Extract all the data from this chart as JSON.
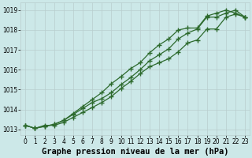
{
  "xlabel": "Graphe pression niveau de la mer (hPa)",
  "x": [
    0,
    1,
    2,
    3,
    4,
    5,
    6,
    7,
    8,
    9,
    10,
    11,
    12,
    13,
    14,
    15,
    16,
    17,
    18,
    19,
    20,
    21,
    22,
    23
  ],
  "line1": [
    1013.2,
    1013.05,
    1013.2,
    1013.2,
    1013.35,
    1013.6,
    1013.85,
    1014.1,
    1014.35,
    1014.65,
    1015.05,
    1015.4,
    1015.8,
    1016.15,
    1016.35,
    1016.55,
    1016.9,
    1017.35,
    1017.5,
    1018.05,
    1018.05,
    1018.65,
    1018.8,
    1018.65
  ],
  "line2": [
    1013.2,
    1013.05,
    1013.15,
    1013.25,
    1013.45,
    1013.8,
    1014.15,
    1014.5,
    1014.85,
    1015.3,
    1015.65,
    1016.05,
    1016.35,
    1016.85,
    1017.25,
    1017.55,
    1018.0,
    1018.1,
    1018.1,
    1018.7,
    1018.85,
    1019.0,
    1018.85,
    1018.65
  ],
  "line3": [
    1013.2,
    1013.05,
    1013.15,
    1013.25,
    1013.45,
    1013.75,
    1014.05,
    1014.35,
    1014.55,
    1014.85,
    1015.25,
    1015.6,
    1016.0,
    1016.45,
    1016.75,
    1017.05,
    1017.55,
    1017.85,
    1018.05,
    1018.65,
    1018.65,
    1018.85,
    1019.0,
    1018.65
  ],
  "line_color": "#2d6a2d",
  "bg_color": "#cce8e8",
  "grid_color": "#b8cece",
  "ylim": [
    1012.7,
    1019.4
  ],
  "xlim": [
    -0.5,
    23.5
  ],
  "yticks": [
    1013,
    1014,
    1015,
    1016,
    1017,
    1018,
    1019
  ],
  "xticks": [
    0,
    1,
    2,
    3,
    4,
    5,
    6,
    7,
    8,
    9,
    10,
    11,
    12,
    13,
    14,
    15,
    16,
    17,
    18,
    19,
    20,
    21,
    22,
    23
  ],
  "marker": "+",
  "markersize": 4,
  "linewidth": 0.9,
  "markeredgewidth": 1.0,
  "xlabel_fontsize": 7.5,
  "tick_fontsize": 5.5
}
